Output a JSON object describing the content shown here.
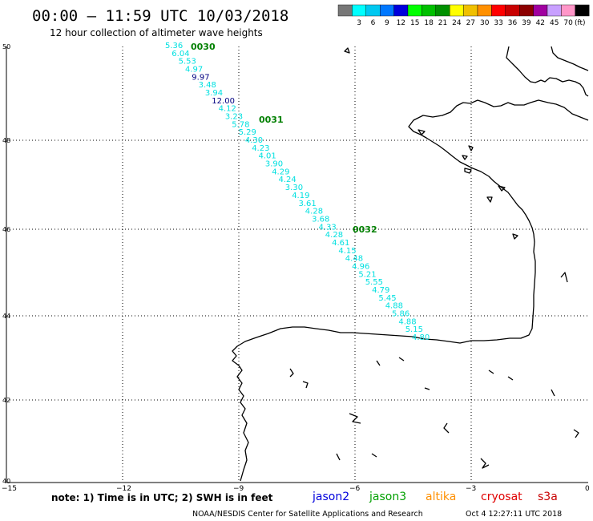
{
  "header": {
    "title": "00:00 – 11:59 UTC 10/03/2018",
    "subtitle": "12 hour collection of altimeter wave heights"
  },
  "legend": {
    "unit": "(ft)",
    "bins": [
      {
        "color": "#777777",
        "label": ""
      },
      {
        "color": "#00ffff",
        "label": "3"
      },
      {
        "color": "#00c8f0",
        "label": "6"
      },
      {
        "color": "#0078ff",
        "label": "9"
      },
      {
        "color": "#0000dc",
        "label": "12"
      },
      {
        "color": "#00ff00",
        "label": "15"
      },
      {
        "color": "#00c000",
        "label": "18"
      },
      {
        "color": "#009000",
        "label": "21"
      },
      {
        "color": "#ffff00",
        "label": "24"
      },
      {
        "color": "#f0c000",
        "label": "27"
      },
      {
        "color": "#ff9000",
        "label": "30"
      },
      {
        "color": "#ff0000",
        "label": "33"
      },
      {
        "color": "#c80000",
        "label": "36"
      },
      {
        "color": "#8c0000",
        "label": "39"
      },
      {
        "color": "#a000a0",
        "label": "42"
      },
      {
        "color": "#c8a0ff",
        "label": "45"
      },
      {
        "color": "#ff96c8",
        "label": "70"
      },
      {
        "color": "#000000",
        "label": ""
      }
    ]
  },
  "axes": {
    "lat_labels": [
      "50",
      "48",
      "46",
      "44",
      "42",
      "40"
    ],
    "lon_labels": [
      "−15",
      "−12",
      "−9",
      "−6",
      "−3",
      "0"
    ]
  },
  "track": {
    "time_labels": [
      "0030",
      "0031",
      "0032"
    ],
    "points": [
      {
        "v": "5.36",
        "c": "cyan"
      },
      {
        "v": "6.04",
        "c": "cyan"
      },
      {
        "v": "5.53",
        "c": "cyan"
      },
      {
        "v": "4.97",
        "c": "cyan"
      },
      {
        "v": "9.97",
        "c": "navy"
      },
      {
        "v": "3.48",
        "c": "cyan"
      },
      {
        "v": "3.94",
        "c": "cyan"
      },
      {
        "v": "12.00",
        "c": "navy"
      },
      {
        "v": "4.12",
        "c": "cyan"
      },
      {
        "v": "3.23",
        "c": "cyan"
      },
      {
        "v": "5.78",
        "c": "cyan"
      },
      {
        "v": "5.29",
        "c": "cyan"
      },
      {
        "v": "4.30",
        "c": "cyan"
      },
      {
        "v": "4.23",
        "c": "cyan"
      },
      {
        "v": "4.01",
        "c": "cyan"
      },
      {
        "v": "3.90",
        "c": "cyan"
      },
      {
        "v": "4.29",
        "c": "cyan"
      },
      {
        "v": "4.24",
        "c": "cyan"
      },
      {
        "v": "3.30",
        "c": "cyan"
      },
      {
        "v": "4.19",
        "c": "cyan"
      },
      {
        "v": "3.61",
        "c": "cyan"
      },
      {
        "v": "4.28",
        "c": "cyan"
      },
      {
        "v": "3.68",
        "c": "cyan"
      },
      {
        "v": "4.33",
        "c": "cyan"
      },
      {
        "v": "4.28",
        "c": "cyan"
      },
      {
        "v": "4.61",
        "c": "cyan"
      },
      {
        "v": "4.15",
        "c": "cyan"
      },
      {
        "v": "4.48",
        "c": "cyan"
      },
      {
        "v": "4.96",
        "c": "cyan"
      },
      {
        "v": "5.21",
        "c": "cyan"
      },
      {
        "v": "5.55",
        "c": "cyan"
      },
      {
        "v": "4.79",
        "c": "cyan"
      },
      {
        "v": "5.45",
        "c": "cyan"
      },
      {
        "v": "4.88",
        "c": "cyan"
      },
      {
        "v": "5.86",
        "c": "cyan"
      },
      {
        "v": "4.88",
        "c": "cyan"
      },
      {
        "v": "5.15",
        "c": "cyan"
      },
      {
        "v": "4.80",
        "c": "cyan"
      }
    ]
  },
  "footer": {
    "note": "note:  1) Time is in UTC;  2) SWH is in feet",
    "satellites": [
      {
        "name": "jason2",
        "color": "#0000dc"
      },
      {
        "name": "jason3",
        "color": "#00a000"
      },
      {
        "name": "altika",
        "color": "#ff9000"
      },
      {
        "name": "cryosat",
        "color": "#e00000"
      },
      {
        "name": "s3a",
        "color": "#c80000"
      }
    ],
    "credit": "NOAA/NESDIS Center for Satellite Applications and Research",
    "timestamp": "Oct  4 12:27:11 UTC 2018"
  },
  "colors": {
    "cyan": "#00e0e0",
    "navy": "#000080",
    "time_label": "#008000"
  }
}
